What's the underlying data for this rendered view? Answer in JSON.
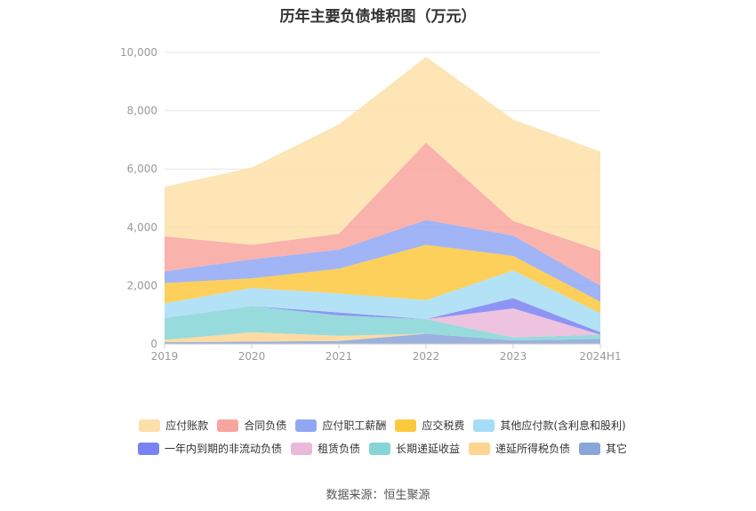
{
  "chart_data": {
    "type": "area",
    "stacked": true,
    "title": "历年主要负债堆积图（万元）",
    "categories": [
      "2019",
      "2020",
      "2021",
      "2022",
      "2023",
      "2024H1"
    ],
    "ylim": [
      0,
      10000
    ],
    "yticks": [
      0,
      2000,
      4000,
      6000,
      8000,
      10000
    ],
    "ytick_labels": [
      "0",
      "2,000",
      "4,000",
      "6,000",
      "8,000",
      "10,000"
    ],
    "grid": true,
    "legend_position": "bottom",
    "series": [
      {
        "name": "其它",
        "color": "#8aa5d8",
        "values": [
          60,
          80,
          100,
          350,
          120,
          170
        ]
      },
      {
        "name": "递延所得税负债",
        "color": "#fdd593",
        "values": [
          80,
          320,
          180,
          0,
          0,
          0
        ]
      },
      {
        "name": "长期递延收益",
        "color": "#86d5d6",
        "values": [
          750,
          900,
          700,
          500,
          100,
          150
        ]
      },
      {
        "name": "租赁负债",
        "color": "#eab9da",
        "values": [
          0,
          0,
          0,
          0,
          1000,
          0
        ]
      },
      {
        "name": "一年内到期的非流动负债",
        "color": "#7a81f2",
        "values": [
          0,
          0,
          100,
          0,
          350,
          80
        ]
      },
      {
        "name": "其他应付款(含利息和股利)",
        "color": "#a6ddf6",
        "values": [
          500,
          620,
          650,
          650,
          950,
          650
        ]
      },
      {
        "name": "应交税费",
        "color": "#fcc83d",
        "values": [
          700,
          330,
          850,
          1900,
          500,
          400
        ]
      },
      {
        "name": "应付职工薪酬",
        "color": "#91a7f3",
        "values": [
          400,
          650,
          650,
          850,
          700,
          550
        ]
      },
      {
        "name": "合同负债",
        "color": "#f9a59f",
        "values": [
          1200,
          500,
          550,
          2650,
          500,
          1200
        ]
      },
      {
        "name": "应付账款",
        "color": "#fde0a9",
        "values": [
          1700,
          2650,
          3750,
          2950,
          3480,
          3400
        ]
      }
    ],
    "legend_order": [
      "应付账款",
      "合同负债",
      "应付职工薪酬",
      "应交税费",
      "其他应付款(含利息和股利)",
      "一年内到期的非流动负债",
      "租赁负债",
      "长期递延收益",
      "递延所得税负债",
      "其它"
    ]
  },
  "source_text": "数据来源：恒生聚源"
}
